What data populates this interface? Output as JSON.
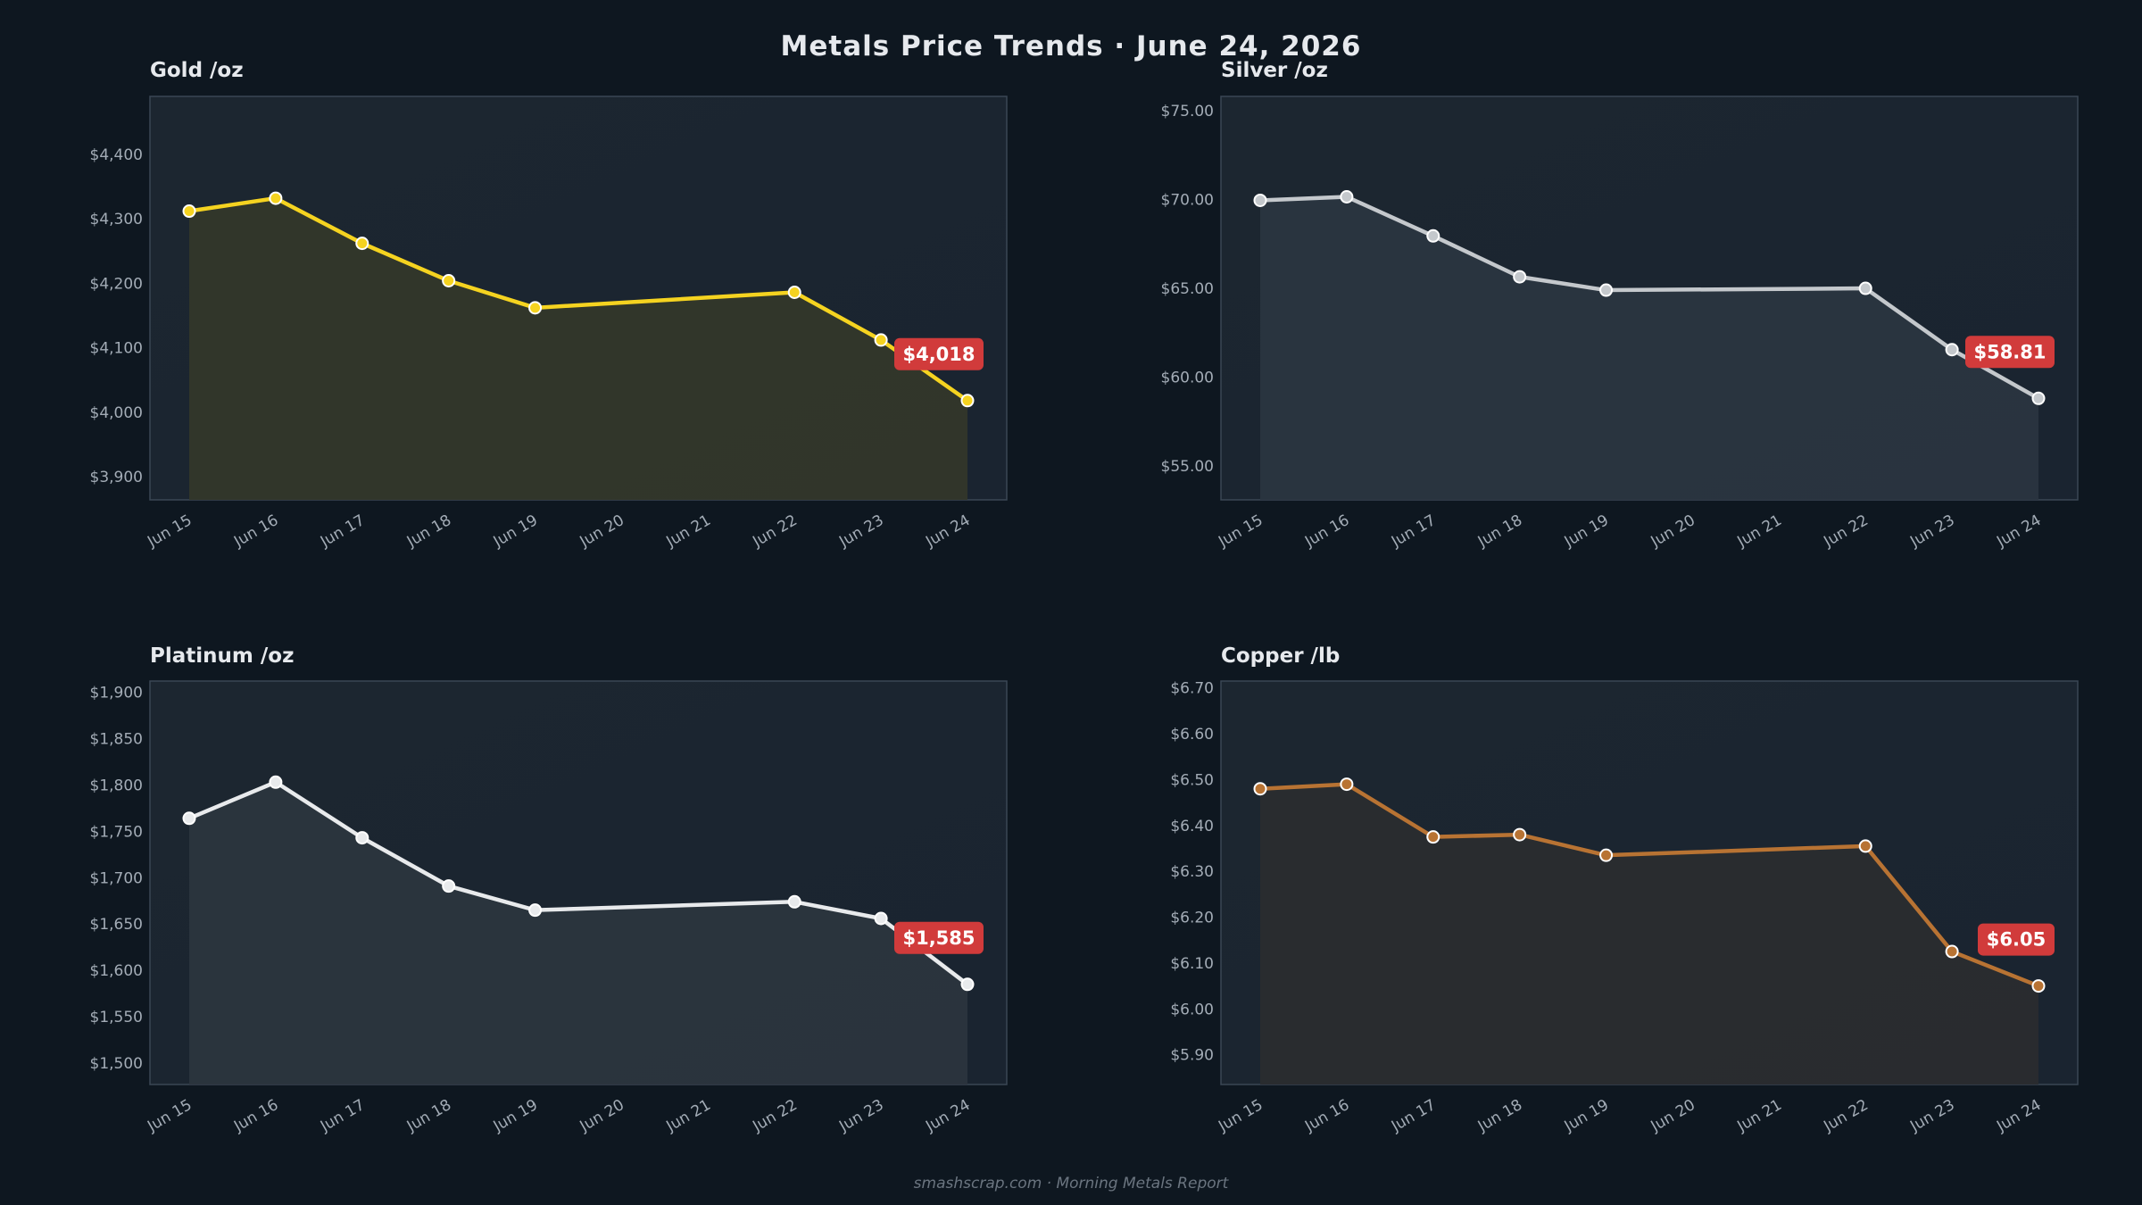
{
  "header": {
    "title": "Metals Price Trends  ·  June 24, 2026"
  },
  "footer": {
    "text": "smashscrap.com  ·  Morning Metals Report"
  },
  "colors": {
    "background": "#0e1720",
    "plot_background": "#1b2631",
    "gold": "#f5d320",
    "silver": "#c4c8cc",
    "platinum": "#e8eaec",
    "copper": "#b87333",
    "badge": "#d13b3b"
  },
  "chart_data": [
    {
      "type": "line",
      "title": "Gold  /oz",
      "x": [
        "Jun 15",
        "Jun 16",
        "Jun 17",
        "Jun 18",
        "Jun 19",
        "Jun 22",
        "Jun 23",
        "Jun 24"
      ],
      "x_ticks": [
        "Jun 15",
        "Jun 16",
        "Jun 17",
        "Jun 18",
        "Jun 19",
        "Jun 20",
        "Jun 21",
        "Jun 22",
        "Jun 23",
        "Jun 24"
      ],
      "series": [
        {
          "values": [
            4312,
            4332,
            4262,
            4204,
            4162,
            4186,
            4112,
            4018
          ]
        }
      ],
      "y_ticks": [
        3900,
        4000,
        4100,
        4200,
        4300,
        4400
      ],
      "y_tick_labels": [
        "$3,900",
        "$4,000",
        "$4,100",
        "$4,200",
        "$4,300",
        "$4,400"
      ],
      "ylim": [
        3864,
        4490
      ],
      "latest_label": "$4,018",
      "color": "#f5d320",
      "fill": "#33372a"
    },
    {
      "type": "line",
      "title": "Silver  /oz",
      "x": [
        "Jun 15",
        "Jun 16",
        "Jun 17",
        "Jun 18",
        "Jun 19",
        "Jun 22",
        "Jun 23",
        "Jun 24"
      ],
      "x_ticks": [
        "Jun 15",
        "Jun 16",
        "Jun 17",
        "Jun 18",
        "Jun 19",
        "Jun 20",
        "Jun 21",
        "Jun 22",
        "Jun 23",
        "Jun 24"
      ],
      "series": [
        {
          "values": [
            69.95,
            70.15,
            67.95,
            65.65,
            64.9,
            65.0,
            61.55,
            58.81
          ]
        }
      ],
      "y_ticks": [
        55,
        60,
        65,
        70,
        75
      ],
      "y_tick_labels": [
        "$55.00",
        "$60.00",
        "$65.00",
        "$70.00",
        "$75.00"
      ],
      "ylim": [
        53.1,
        75.8
      ],
      "latest_label": "$58.81",
      "color": "#c4c8cc",
      "fill": "#2a3540"
    },
    {
      "type": "line",
      "title": "Platinum  /oz",
      "x": [
        "Jun 15",
        "Jun 16",
        "Jun 17",
        "Jun 18",
        "Jun 19",
        "Jun 22",
        "Jun 23",
        "Jun 24"
      ],
      "x_ticks": [
        "Jun 15",
        "Jun 16",
        "Jun 17",
        "Jun 18",
        "Jun 19",
        "Jun 20",
        "Jun 21",
        "Jun 22",
        "Jun 23",
        "Jun 24"
      ],
      "series": [
        {
          "values": [
            1764,
            1803,
            1743,
            1691,
            1665,
            1674,
            1656,
            1585
          ]
        }
      ],
      "y_ticks": [
        1500,
        1550,
        1600,
        1650,
        1700,
        1750,
        1800,
        1850,
        1900
      ],
      "y_tick_labels": [
        "$1,500",
        "$1,550",
        "$1,600",
        "$1,650",
        "$1,700",
        "$1,750",
        "$1,800",
        "$1,850",
        "$1,900"
      ],
      "ylim": [
        1477,
        1912
      ],
      "latest_label": "$1,585",
      "color": "#e8eaec",
      "fill": "#2b353e"
    },
    {
      "type": "line",
      "title": "Copper  /lb",
      "x": [
        "Jun 15",
        "Jun 16",
        "Jun 17",
        "Jun 18",
        "Jun 19",
        "Jun 22",
        "Jun 23",
        "Jun 24"
      ],
      "x_ticks": [
        "Jun 15",
        "Jun 16",
        "Jun 17",
        "Jun 18",
        "Jun 19",
        "Jun 20",
        "Jun 21",
        "Jun 22",
        "Jun 23",
        "Jun 24"
      ],
      "series": [
        {
          "values": [
            6.48,
            6.49,
            6.375,
            6.38,
            6.335,
            6.355,
            6.125,
            6.05
          ]
        }
      ],
      "y_ticks": [
        5.9,
        6.0,
        6.1,
        6.2,
        6.3,
        6.4,
        6.5,
        6.6,
        6.7
      ],
      "y_tick_labels": [
        "$5.90",
        "$6.00",
        "$6.10",
        "$6.20",
        "$6.30",
        "$6.40",
        "$6.50",
        "$6.60",
        "$6.70"
      ],
      "ylim": [
        5.835,
        6.715
      ],
      "latest_label": "$6.05",
      "color": "#b87333",
      "fill": "#2a2c2f"
    }
  ]
}
